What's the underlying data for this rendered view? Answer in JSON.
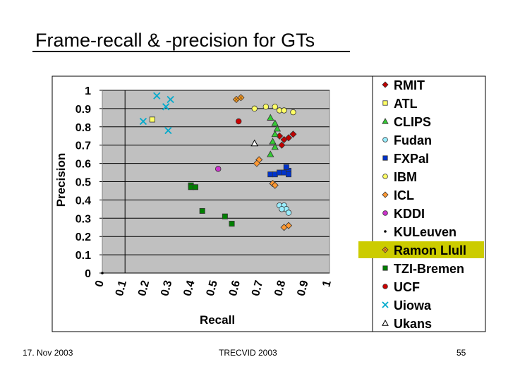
{
  "slide": {
    "title": "Frame-recall & -precision for GTs",
    "footer_left": "17. Nov 2003",
    "footer_center": "TRECVID 2003",
    "footer_right": "55"
  },
  "chart_data": {
    "type": "scatter",
    "xlabel": "Recall",
    "ylabel": "Precision",
    "xlim": [
      0,
      1
    ],
    "ylim": [
      0,
      1
    ],
    "x_ticks": [
      "0",
      "0.1",
      "0.2",
      "0.3",
      "0.4",
      "0.5",
      "0.6",
      "0.7",
      "0.8",
      "0.9",
      "1"
    ],
    "y_ticks": [
      "0",
      "0.1",
      "0.2",
      "0.3",
      "0.4",
      "0.5",
      "0.6",
      "0.7",
      "0.8",
      "0.9",
      "1"
    ],
    "grid": "horizontal",
    "plot_background": "#c0c0c0",
    "legend_position": "right",
    "legend_highlight": "Ramon Llull",
    "legend_highlight_color": "#cccc00",
    "series": [
      {
        "name": "RMIT",
        "marker": "diamond",
        "color": "#c00000",
        "points": [
          [
            0.78,
            0.75
          ],
          [
            0.8,
            0.73
          ],
          [
            0.82,
            0.74
          ],
          [
            0.84,
            0.76
          ],
          [
            0.79,
            0.7
          ]
        ]
      },
      {
        "name": "ATL",
        "marker": "square",
        "color": "#ffff66",
        "points": [
          [
            0.22,
            0.84
          ]
        ]
      },
      {
        "name": "CLIPS",
        "marker": "triangle",
        "color": "#33cc33",
        "points": [
          [
            0.74,
            0.85
          ],
          [
            0.76,
            0.82
          ],
          [
            0.77,
            0.79
          ],
          [
            0.76,
            0.76
          ],
          [
            0.75,
            0.72
          ],
          [
            0.76,
            0.69
          ],
          [
            0.74,
            0.65
          ]
        ]
      },
      {
        "name": "Fudan",
        "marker": "circle",
        "color": "#99eeff",
        "points": [
          [
            0.78,
            0.37
          ],
          [
            0.8,
            0.37
          ],
          [
            0.81,
            0.35
          ],
          [
            0.79,
            0.35
          ],
          [
            0.82,
            0.33
          ]
        ]
      },
      {
        "name": "FXPal",
        "marker": "square",
        "color": "#0033cc",
        "points": [
          [
            0.74,
            0.54
          ],
          [
            0.76,
            0.54
          ],
          [
            0.78,
            0.55
          ],
          [
            0.8,
            0.55
          ],
          [
            0.82,
            0.56
          ],
          [
            0.81,
            0.58
          ],
          [
            0.82,
            0.54
          ]
        ]
      },
      {
        "name": "IBM",
        "marker": "circle",
        "color": "#ffff66",
        "points": [
          [
            0.67,
            0.9
          ],
          [
            0.72,
            0.91
          ],
          [
            0.76,
            0.91
          ],
          [
            0.78,
            0.89
          ],
          [
            0.8,
            0.89
          ],
          [
            0.84,
            0.88
          ]
        ]
      },
      {
        "name": "ICL",
        "marker": "diamond",
        "color": "#ff9933",
        "points": [
          [
            0.69,
            0.62
          ],
          [
            0.68,
            0.6
          ],
          [
            0.75,
            0.49
          ],
          [
            0.76,
            0.48
          ],
          [
            0.8,
            0.25
          ],
          [
            0.82,
            0.26
          ]
        ]
      },
      {
        "name": "KDDI",
        "marker": "circle",
        "color": "#cc33cc",
        "points": [
          [
            0.51,
            0.57
          ]
        ]
      },
      {
        "name": "KULeuven",
        "marker": "dot",
        "color": "#000000",
        "points": [
          [
            0.0,
            0.0
          ]
        ]
      },
      {
        "name": "Ramon Llull",
        "marker": "x-diamond",
        "color": "#ff9933",
        "points": [
          [
            0.59,
            0.95
          ],
          [
            0.61,
            0.96
          ]
        ]
      },
      {
        "name": "TZI-Bremen",
        "marker": "square",
        "color": "#008000",
        "points": [
          [
            0.39,
            0.48
          ],
          [
            0.39,
            0.47
          ],
          [
            0.41,
            0.47
          ],
          [
            0.44,
            0.34
          ],
          [
            0.54,
            0.31
          ],
          [
            0.57,
            0.27
          ]
        ]
      },
      {
        "name": "UCF",
        "marker": "circle",
        "color": "#cc0000",
        "points": [
          [
            0.6,
            0.83
          ]
        ]
      },
      {
        "name": "Uiowa",
        "marker": "x",
        "color": "#00aacc",
        "points": [
          [
            0.24,
            0.97
          ],
          [
            0.28,
            0.91
          ],
          [
            0.3,
            0.95
          ],
          [
            0.18,
            0.83
          ],
          [
            0.29,
            0.78
          ]
        ]
      },
      {
        "name": "Ukans",
        "marker": "triangle-open",
        "color": "#ffffff",
        "points": [
          [
            0.67,
            0.71
          ]
        ]
      }
    ]
  }
}
